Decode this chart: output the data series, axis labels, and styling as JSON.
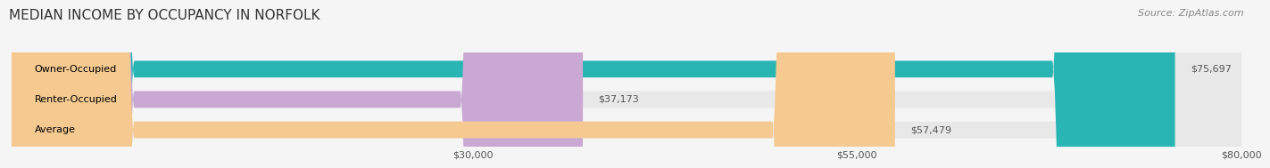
{
  "title": "MEDIAN INCOME BY OCCUPANCY IN NORFOLK",
  "source": "Source: ZipAtlas.com",
  "categories": [
    "Owner-Occupied",
    "Renter-Occupied",
    "Average"
  ],
  "values": [
    75697,
    37173,
    57479
  ],
  "bar_colors": [
    "#2ab5b5",
    "#c9a8d4",
    "#f5c990"
  ],
  "value_labels": [
    "$75,697",
    "$37,173",
    "$57,479"
  ],
  "xlim": [
    0,
    80000
  ],
  "xticks": [
    30000,
    55000,
    80000
  ],
  "xticklabels": [
    "$30,000",
    "$55,000",
    "$80,000"
  ],
  "title_fontsize": 11,
  "source_fontsize": 8,
  "label_fontsize": 8,
  "tick_fontsize": 8,
  "bar_height": 0.55,
  "background_color": "#f5f5f5",
  "bar_background_color": "#e8e8e8"
}
